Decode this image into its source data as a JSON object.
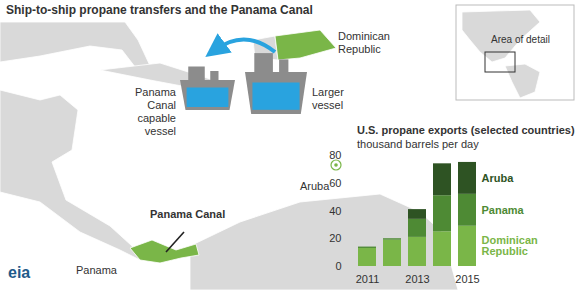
{
  "title": "Ship-to-ship propane transfers and the Panama Canal",
  "map": {
    "labels": {
      "dominican_republic": "Dominican Republic",
      "panama_canal": "Panama Canal",
      "panama": "Panama",
      "aruba": "Aruba"
    },
    "inset_label": "Area of detail"
  },
  "diagram": {
    "small_vessel": "Panama Canal capable vessel",
    "large_vessel": "Larger vessel"
  },
  "logo": "eia",
  "chart_data": {
    "type": "bar",
    "stacked": true,
    "title": "U.S. propane exports (selected countries)",
    "subtitle": "thousand barrels per day",
    "categories": [
      "2011",
      null,
      "2013",
      null,
      "2015"
    ],
    "series": [
      {
        "name": "Dominican Republic",
        "color": "#7ab648",
        "values": [
          13,
          19,
          21,
          25,
          29
        ]
      },
      {
        "name": "Panama",
        "color": "#4e8a34",
        "values": [
          1,
          1,
          13,
          26,
          23
        ]
      },
      {
        "name": "Aruba",
        "color": "#2e5323",
        "values": [
          0,
          0,
          7,
          23,
          23
        ]
      }
    ],
    "ylim": [
      0,
      80
    ],
    "yticks": [
      0,
      20,
      40,
      60,
      80
    ],
    "grid": false,
    "legend": "right"
  }
}
